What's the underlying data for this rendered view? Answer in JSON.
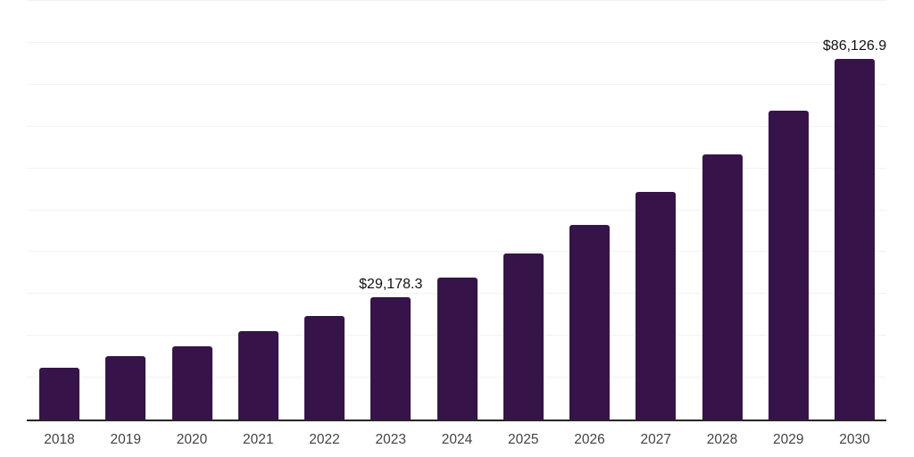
{
  "chart_data": {
    "type": "bar",
    "title": "",
    "xlabel": "",
    "ylabel": "",
    "categories": [
      "2018",
      "2019",
      "2020",
      "2021",
      "2022",
      "2023",
      "2024",
      "2025",
      "2026",
      "2027",
      "2028",
      "2029",
      "2030"
    ],
    "values": [
      12400,
      15100,
      17400,
      21100,
      24800,
      29178.3,
      34000,
      39700,
      46400,
      54300,
      63300,
      73800,
      86126.9
    ],
    "data_labels": [
      {
        "category": "2023",
        "text": "$29,178.3"
      },
      {
        "category": "2030",
        "text": "$86,126.9"
      }
    ],
    "ylim": [
      0,
      100000
    ],
    "gridline_interval": 10000,
    "grid": "horizontal-only",
    "y_axis_tick_labels": "none",
    "legend": "none",
    "colors": {
      "bar": "#361349",
      "axis_line": "#262626",
      "gridline": "#f2f2f2",
      "x_label": "#434343",
      "value_label": "#111111",
      "background": "#ffffff"
    }
  }
}
